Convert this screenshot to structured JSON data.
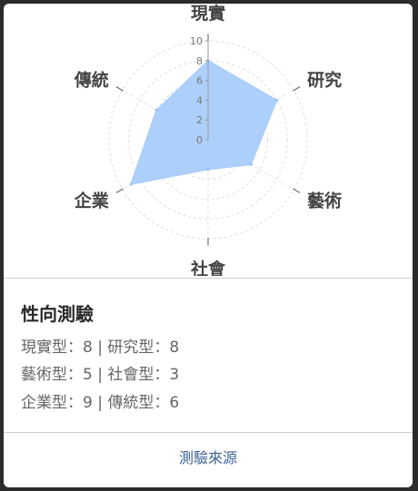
{
  "chart_data": {
    "type": "radar",
    "categories": [
      "現實",
      "研究",
      "藝術",
      "社會",
      "企業",
      "傳統"
    ],
    "values": [
      8,
      8,
      5,
      3,
      9,
      6
    ],
    "rlim": [
      0,
      10
    ],
    "ticks": [
      0,
      2,
      4,
      6,
      8,
      10
    ],
    "grid": true,
    "fill_color": "#a9cdfb",
    "grid_color": "#dddddd"
  },
  "card": {
    "title": "性向測驗",
    "lines": [
      "現實型：8 | 研究型：8",
      "藝術型：5 | 社會型：3",
      "企業型：9 | 傳統型：6"
    ],
    "source_label": "測驗來源",
    "link_color": "#3f6395"
  }
}
